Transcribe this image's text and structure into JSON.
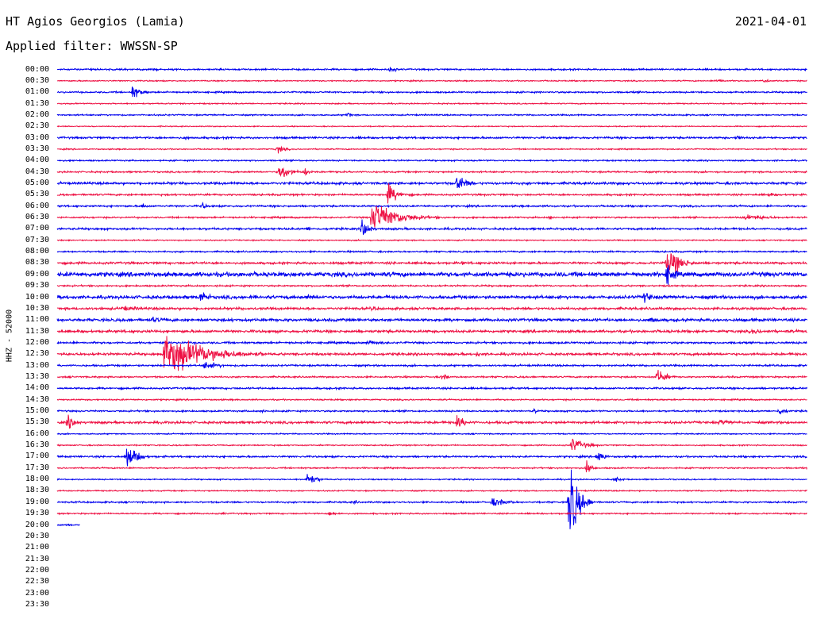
{
  "header": {
    "station": "HT Agios Georgios (Lamia)",
    "date": "2021-04-01",
    "filter": "Applied filter: WWSSN-SP"
  },
  "chart_data": {
    "type": "line",
    "ylabel": "HHZ - 52000",
    "rows": [
      "00:00",
      "00:30",
      "01:00",
      "01:30",
      "02:00",
      "02:30",
      "03:00",
      "03:30",
      "04:00",
      "04:30",
      "05:00",
      "05:30",
      "06:00",
      "06:30",
      "07:00",
      "07:30",
      "08:00",
      "08:30",
      "09:00",
      "09:30",
      "10:00",
      "10:30",
      "11:00",
      "11:30",
      "12:00",
      "12:30",
      "13:00",
      "13:30",
      "14:00",
      "14:30",
      "15:00",
      "15:30",
      "16:00",
      "16:30",
      "17:00",
      "17:30",
      "18:00",
      "18:30",
      "19:00",
      "19:30",
      "20:00",
      "20:30",
      "21:00",
      "21:30",
      "22:00",
      "22:30",
      "23:00",
      "23:30"
    ],
    "row_minutes": 30,
    "colors": [
      "#0000ee",
      "#ee1144"
    ],
    "recorded_rows": 40,
    "last_row_fraction": 0.03,
    "noise_levels": [
      0.8,
      0.6,
      0.8,
      0.6,
      0.7,
      0.5,
      1.0,
      0.6,
      0.7,
      0.8,
      1.2,
      0.9,
      0.9,
      0.8,
      1.0,
      0.6,
      0.8,
      1.1,
      2.2,
      0.8,
      1.6,
      1.2,
      1.4,
      1.3,
      1.0,
      1.2,
      0.9,
      0.8,
      0.9,
      0.7,
      0.8,
      1.2,
      0.6,
      0.6,
      0.9,
      0.7,
      0.6,
      0.6,
      0.8,
      0.7,
      0.8
    ],
    "events": [
      {
        "row": "00:00",
        "minute": 13.3,
        "amplitude": 4,
        "duration": 0.8
      },
      {
        "row": "00:30",
        "minute": 26.4,
        "amplitude": 2.5,
        "duration": 1.2
      },
      {
        "row": "00:30",
        "minute": 28.2,
        "amplitude": 2.5,
        "duration": 1.2
      },
      {
        "row": "01:00",
        "minute": 3.0,
        "amplitude": 8,
        "duration": 1.0
      },
      {
        "row": "02:00",
        "minute": 11.6,
        "amplitude": 4,
        "duration": 0.5
      },
      {
        "row": "03:00",
        "minute": 5.1,
        "amplitude": 2.5,
        "duration": 0.6
      },
      {
        "row": "03:00",
        "minute": 27.2,
        "amplitude": 4,
        "duration": 0.6
      },
      {
        "row": "03:30",
        "minute": 8.8,
        "amplitude": 4,
        "duration": 1.0
      },
      {
        "row": "04:30",
        "minute": 8.9,
        "amplitude": 10,
        "duration": 1.2
      },
      {
        "row": "04:30",
        "minute": 9.9,
        "amplitude": 5,
        "duration": 0.6
      },
      {
        "row": "05:00",
        "minute": 16.0,
        "amplitude": 10,
        "duration": 1.2
      },
      {
        "row": "05:30",
        "minute": 13.2,
        "amplitude": 12,
        "duration": 1.3
      },
      {
        "row": "05:30",
        "minute": 28.5,
        "amplitude": 2.5,
        "duration": 1.0
      },
      {
        "row": "06:00",
        "minute": 3.4,
        "amplitude": 4,
        "duration": 0.6
      },
      {
        "row": "06:00",
        "minute": 5.8,
        "amplitude": 4,
        "duration": 0.6
      },
      {
        "row": "06:30",
        "minute": 12.6,
        "amplitude": 18,
        "duration": 3.0
      },
      {
        "row": "06:30",
        "minute": 19.7,
        "amplitude": 2.5,
        "duration": 0.6
      },
      {
        "row": "06:30",
        "minute": 27.5,
        "amplitude": 4,
        "duration": 3.0
      },
      {
        "row": "07:00",
        "minute": 12.2,
        "amplitude": 12,
        "duration": 0.8
      },
      {
        "row": "07:00",
        "minute": 10.0,
        "amplitude": 2.5,
        "duration": 0.8
      },
      {
        "row": "08:30",
        "minute": 24.4,
        "amplitude": 18,
        "duration": 1.5
      },
      {
        "row": "08:30",
        "minute": 16.2,
        "amplitude": 2.5,
        "duration": 0.6
      },
      {
        "row": "09:00",
        "minute": 24.4,
        "amplitude": 12,
        "duration": 1.0
      },
      {
        "row": "10:00",
        "minute": 5.7,
        "amplitude": 8,
        "duration": 1.0
      },
      {
        "row": "10:00",
        "minute": 10.0,
        "amplitude": 3,
        "duration": 2.0
      },
      {
        "row": "10:00",
        "minute": 23.5,
        "amplitude": 7,
        "duration": 1.0
      },
      {
        "row": "10:30",
        "minute": 2.6,
        "amplitude": 3,
        "duration": 3.0
      },
      {
        "row": "10:30",
        "minute": 12.6,
        "amplitude": 3,
        "duration": 0.8
      },
      {
        "row": "11:00",
        "minute": 3.8,
        "amplitude": 3,
        "duration": 2.5
      },
      {
        "row": "11:00",
        "minute": 23.7,
        "amplitude": 4,
        "duration": 1.5
      },
      {
        "row": "11:30",
        "minute": 27.8,
        "amplitude": 3,
        "duration": 2.5
      },
      {
        "row": "12:00",
        "minute": 12.4,
        "amplitude": 2.5,
        "duration": 3.0
      },
      {
        "row": "12:30",
        "minute": 4.3,
        "amplitude": 25,
        "duration": 4.5
      },
      {
        "row": "12:30",
        "minute": 8.1,
        "amplitude": 3,
        "duration": 0.8
      },
      {
        "row": "12:30",
        "minute": 16.8,
        "amplitude": 3,
        "duration": 0.6
      },
      {
        "row": "13:00",
        "minute": 5.9,
        "amplitude": 5,
        "duration": 1.8
      },
      {
        "row": "13:30",
        "minute": 15.4,
        "amplitude": 4,
        "duration": 0.8
      },
      {
        "row": "13:30",
        "minute": 24.0,
        "amplitude": 10,
        "duration": 1.0
      },
      {
        "row": "15:00",
        "minute": 8.2,
        "amplitude": 2.5,
        "duration": 0.6
      },
      {
        "row": "15:00",
        "minute": 19.1,
        "amplitude": 4,
        "duration": 0.3
      },
      {
        "row": "15:00",
        "minute": 28.9,
        "amplitude": 4,
        "duration": 1.0
      },
      {
        "row": "15:30",
        "minute": 0.4,
        "amplitude": 8,
        "duration": 1.0
      },
      {
        "row": "15:30",
        "minute": 16.0,
        "amplitude": 8,
        "duration": 1.0
      },
      {
        "row": "15:30",
        "minute": 26.5,
        "amplitude": 3,
        "duration": 2.5
      },
      {
        "row": "16:30",
        "minute": 20.6,
        "amplitude": 8,
        "duration": 1.5
      },
      {
        "row": "17:00",
        "minute": 2.8,
        "amplitude": 14,
        "duration": 1.2
      },
      {
        "row": "17:00",
        "minute": 21.6,
        "amplitude": 8,
        "duration": 0.8
      },
      {
        "row": "17:30",
        "minute": 21.2,
        "amplitude": 8,
        "duration": 0.6
      },
      {
        "row": "18:00",
        "minute": 10.0,
        "amplitude": 8,
        "duration": 1.0
      },
      {
        "row": "18:00",
        "minute": 22.3,
        "amplitude": 3,
        "duration": 1.0
      },
      {
        "row": "19:00",
        "minute": 17.4,
        "amplitude": 5,
        "duration": 2.0
      },
      {
        "row": "19:00",
        "minute": 20.5,
        "amplitude": 48,
        "duration": 1.0
      },
      {
        "row": "19:00",
        "minute": 11.9,
        "amplitude": 3,
        "duration": 0.4
      },
      {
        "row": "19:30",
        "minute": 10.9,
        "amplitude": 3,
        "duration": 1.2
      },
      {
        "row": "19:30",
        "minute": 6.6,
        "amplitude": 2.5,
        "duration": 0.4
      }
    ]
  }
}
